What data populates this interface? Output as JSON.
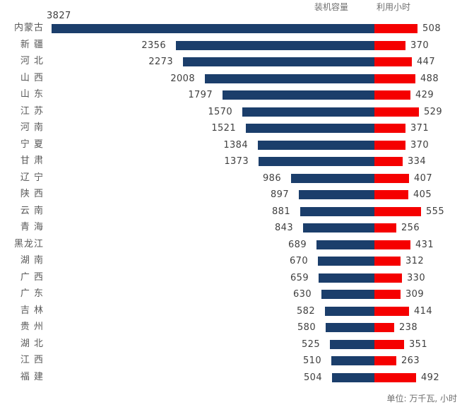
{
  "chart_data": {
    "type": "bar",
    "subtype": "tornado",
    "orientation": "horizontal",
    "legend_position": "top-right",
    "grid": "off",
    "unit_note": "单位: 万千瓦, 小时",
    "categories": [
      "内蒙古",
      "新 疆",
      "河 北",
      "山 西",
      "山 东",
      "江 苏",
      "河 南",
      "宁 夏",
      "甘 肃",
      "辽 宁",
      "陕 西",
      "云 南",
      "青 海",
      "黑龙江",
      "湖 南",
      "广 西",
      "广 东",
      "吉 林",
      "贵 州",
      "湖 北",
      "江 西",
      "福 建"
    ],
    "series": [
      {
        "name": "装机容量",
        "side": "left",
        "color": "#1B3E6B",
        "values": [
          3827,
          2356,
          2273,
          2008,
          1797,
          1570,
          1521,
          1384,
          1373,
          986,
          897,
          881,
          843,
          689,
          670,
          659,
          630,
          582,
          580,
          525,
          510,
          504
        ]
      },
      {
        "name": "利用小时",
        "side": "right",
        "color": "#F50000",
        "values": [
          508,
          370,
          447,
          488,
          429,
          529,
          371,
          370,
          334,
          407,
          405,
          555,
          256,
          431,
          312,
          330,
          309,
          414,
          238,
          351,
          263,
          492
        ]
      }
    ],
    "value_label_color": "#3f3f3f",
    "category_label_color": "#595959"
  }
}
